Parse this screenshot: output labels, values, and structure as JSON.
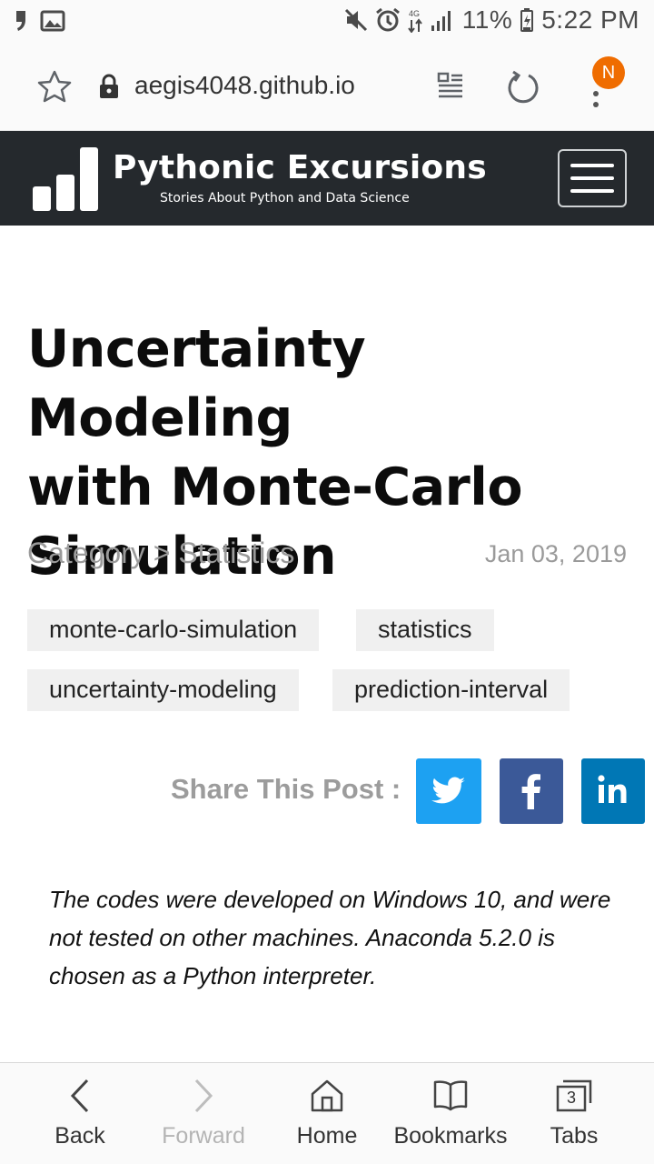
{
  "status_bar": {
    "battery": "11%",
    "time": "5:22 PM",
    "network": "4G LTE",
    "icons": [
      "notification-quote-icon",
      "gallery-icon",
      "mute-icon",
      "alarm-icon",
      "data-arrows-icon",
      "signal-icon",
      "battery-icon"
    ]
  },
  "browser": {
    "url": "aegis4048.github.io",
    "menu_badge": "N",
    "badge_color": "#ef6c00"
  },
  "site": {
    "title": "Pythonic Excursions",
    "subtitle": "Stories About Python and Data Science",
    "header_color": "#25292d"
  },
  "article": {
    "title_lines": [
      "Uncertainty Modeling",
      "with Monte-Carlo",
      "Simulation"
    ],
    "category": "Category > Statistics",
    "date": "Jan 03, 2019",
    "tags": [
      "monte-carlo-simulation",
      "statistics",
      "uncertainty-modeling",
      "prediction-interval"
    ],
    "share_label": "Share This Post :",
    "share": [
      {
        "name": "twitter",
        "color": "#1da1f2"
      },
      {
        "name": "facebook",
        "color": "#3b5998"
      },
      {
        "name": "linkedin",
        "color": "#0077b5"
      }
    ],
    "intro": "The codes were developed on Windows 10, and were not tested on other machines. Anaconda 5.2.0 is chosen as a Python interpreter."
  },
  "bottom_nav": {
    "back": "Back",
    "forward": "Forward",
    "home": "Home",
    "bookmarks": "Bookmarks",
    "tabs": "Tabs",
    "tab_count": "3"
  }
}
